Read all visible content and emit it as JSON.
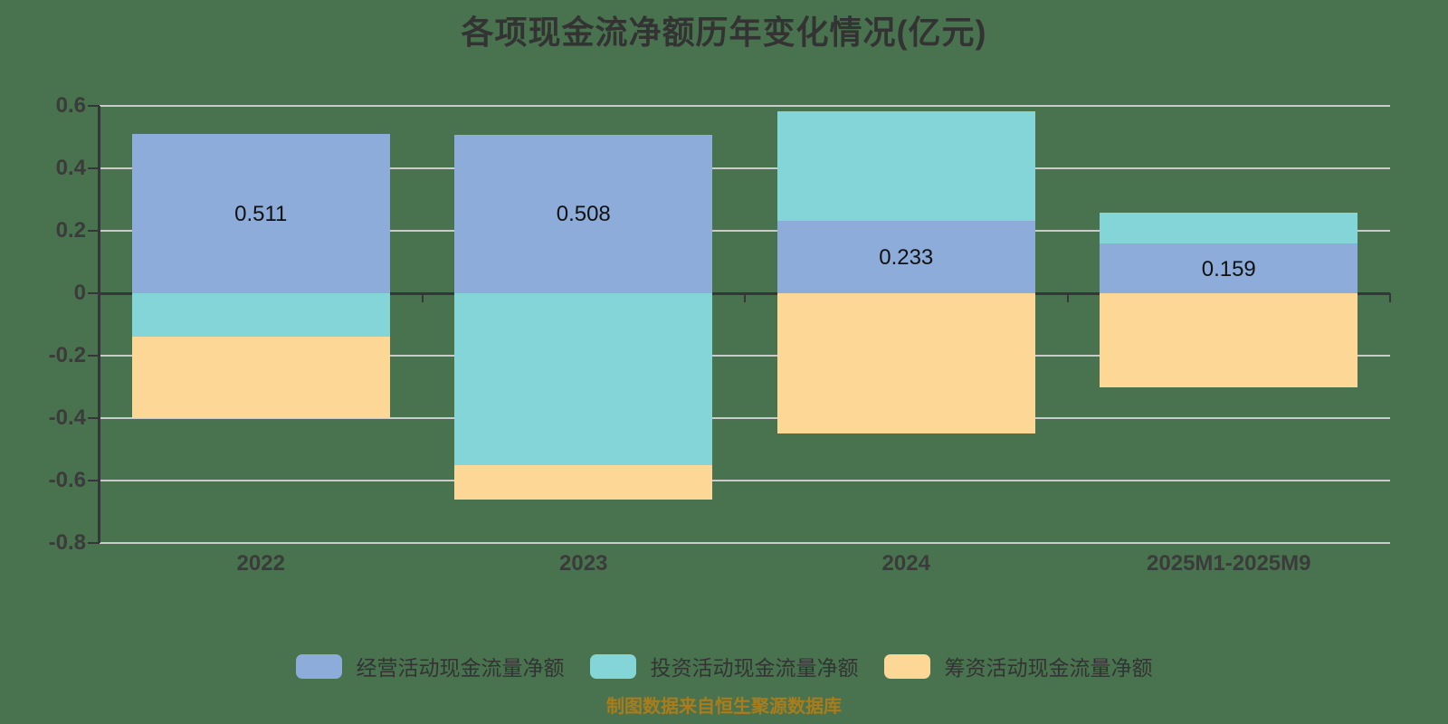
{
  "title": "各项现金流净额历年变化情况(亿元)",
  "footer": "制图数据来自恒生聚源数据库",
  "colors": {
    "background": "#49734f",
    "gridline": "#cbcbcb",
    "axis_dark": "#35353b",
    "title_text": "#333333",
    "tick_label": "#3b3b3b",
    "bar_label": "#111111",
    "legend_label": "#333333",
    "footer_text": "#ab7c1a"
  },
  "chart_data": {
    "type": "bar",
    "stacked": true,
    "title": "各项现金流净额历年变化情况(亿元)",
    "categories": [
      "2022",
      "2023",
      "2024",
      "2025M1-2025M9"
    ],
    "series": [
      {
        "name": "经营活动现金流量净额",
        "color": "#8dacd9",
        "values": [
          0.511,
          0.508,
          0.233,
          0.159
        ],
        "labels": [
          "0.511",
          "0.508",
          "0.233",
          "0.159"
        ]
      },
      {
        "name": "投资活动现金流量净额",
        "color": "#84d5d8",
        "values": [
          -0.14,
          -0.55,
          0.35,
          0.1
        ]
      },
      {
        "name": "筹资活动现金流量净额",
        "color": "#fdd795",
        "values": [
          -0.26,
          -0.11,
          -0.45,
          -0.3
        ]
      }
    ],
    "xlabel": "",
    "ylabel": "",
    "ylim": [
      -0.8,
      0.6
    ],
    "yticks": [
      {
        "v": 0.6,
        "label": "0.6"
      },
      {
        "v": 0.4,
        "label": "0.4"
      },
      {
        "v": 0.2,
        "label": "0.2"
      },
      {
        "v": 0,
        "label": "0"
      },
      {
        "v": -0.2,
        "label": "-0.2"
      },
      {
        "v": -0.4,
        "label": "-0.4"
      },
      {
        "v": -0.6,
        "label": "-0.6"
      },
      {
        "v": -0.8,
        "label": "-0.8"
      }
    ],
    "grid": true,
    "legend_position": "bottom"
  }
}
